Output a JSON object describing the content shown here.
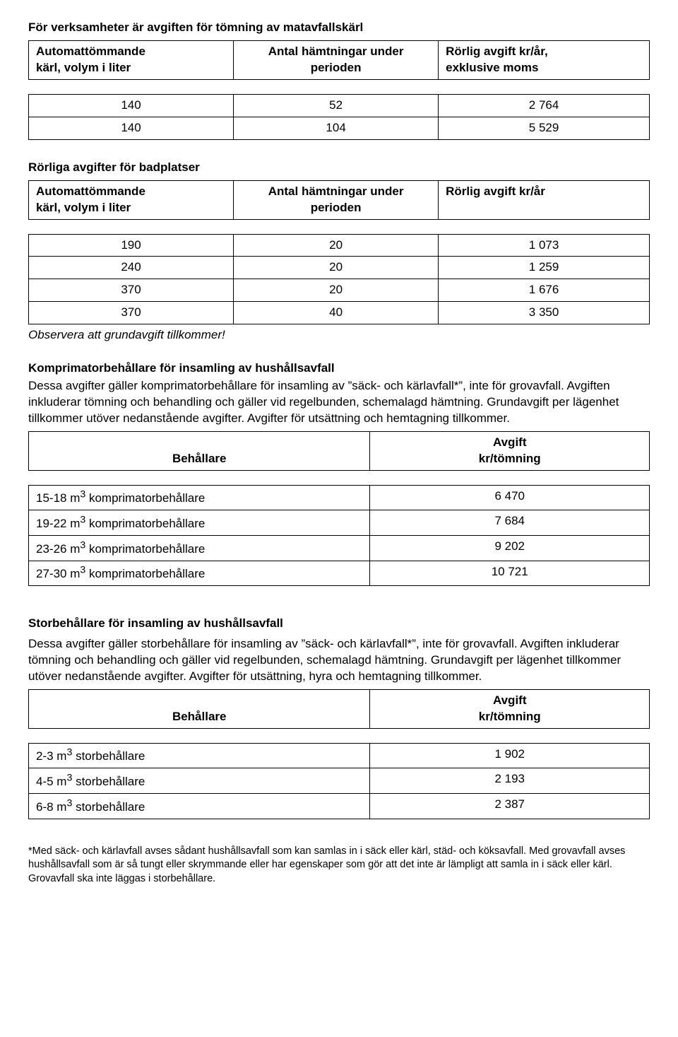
{
  "sec1": {
    "title": "För verksamheter är avgiften för tömning av matavfallskärl",
    "headers": [
      "Automattömmande\nkärl, volym i liter",
      "Antal hämtningar under\nperioden",
      "Rörlig avgift kr/år,\nexklusive moms"
    ],
    "rows": [
      [
        "140",
        "52",
        "2 764"
      ],
      [
        "140",
        "104",
        "5 529"
      ]
    ]
  },
  "sec2": {
    "title": "Rörliga avgifter för badplatser",
    "headers": [
      "Automattömmande\nkärl, volym i liter",
      "Antal hämtningar under\nperioden",
      "Rörlig avgift kr/år"
    ],
    "rows": [
      [
        "190",
        "20",
        "1 073"
      ],
      [
        "240",
        "20",
        "1 259"
      ],
      [
        "370",
        "20",
        "1 676"
      ],
      [
        "370",
        "40",
        "3 350"
      ]
    ],
    "note": "Observera att grundavgift tillkommer!"
  },
  "sec3": {
    "title": "Komprimatorbehållare för insamling av hushållsavfall",
    "body": "Dessa avgifter gäller komprimatorbehållare för insamling av ”säck- och kärlavfall*”, inte för grovavfall. Avgiften inkluderar tömning och behandling och gäller vid regelbunden, schemalagd hämtning. Grundavgift per lägenhet tillkommer utöver nedanstående avgifter. Avgifter för utsättning och hemtagning tillkommer.",
    "headers": [
      "Behållare",
      "Avgift\nkr/tömning"
    ],
    "rows": [
      [
        "15-18 m³ komprimatorbehållare",
        "6 470"
      ],
      [
        "19-22 m³ komprimatorbehållare",
        "7 684"
      ],
      [
        "23-26 m³ komprimatorbehållare",
        "9 202"
      ],
      [
        "27-30 m³ komprimatorbehållare",
        "10 721"
      ]
    ]
  },
  "sec4": {
    "title": "Storbehållare för insamling av hushållsavfall",
    "body": "Dessa avgifter gäller storbehållare för insamling av ”säck- och kärlavfall*”, inte för grovavfall. Avgiften inkluderar tömning och behandling och gäller vid regelbunden, schemalagd hämtning. Grundavgift per lägenhet tillkommer utöver nedanstående avgifter. Avgifter för utsättning, hyra och hemtagning tillkommer.",
    "headers": [
      "Behållare",
      "Avgift\nkr/tömning"
    ],
    "rows": [
      [
        "2-3 m³ storbehållare",
        "1 902"
      ],
      [
        "4-5 m³ storbehållare",
        "2 193"
      ],
      [
        "6-8 m³ storbehållare",
        "2 387"
      ]
    ]
  },
  "footnote": "*Med säck- och kärlavfall avses sådant hushållsavfall som kan samlas in i säck eller kärl, städ- och köksavfall. Med grovavfall avses hushållsavfall som är så tungt eller skrymmande eller har egenskaper som gör att det inte är lämpligt att samla in i säck eller kärl. Grovavfall ska inte läggas i storbehållare."
}
